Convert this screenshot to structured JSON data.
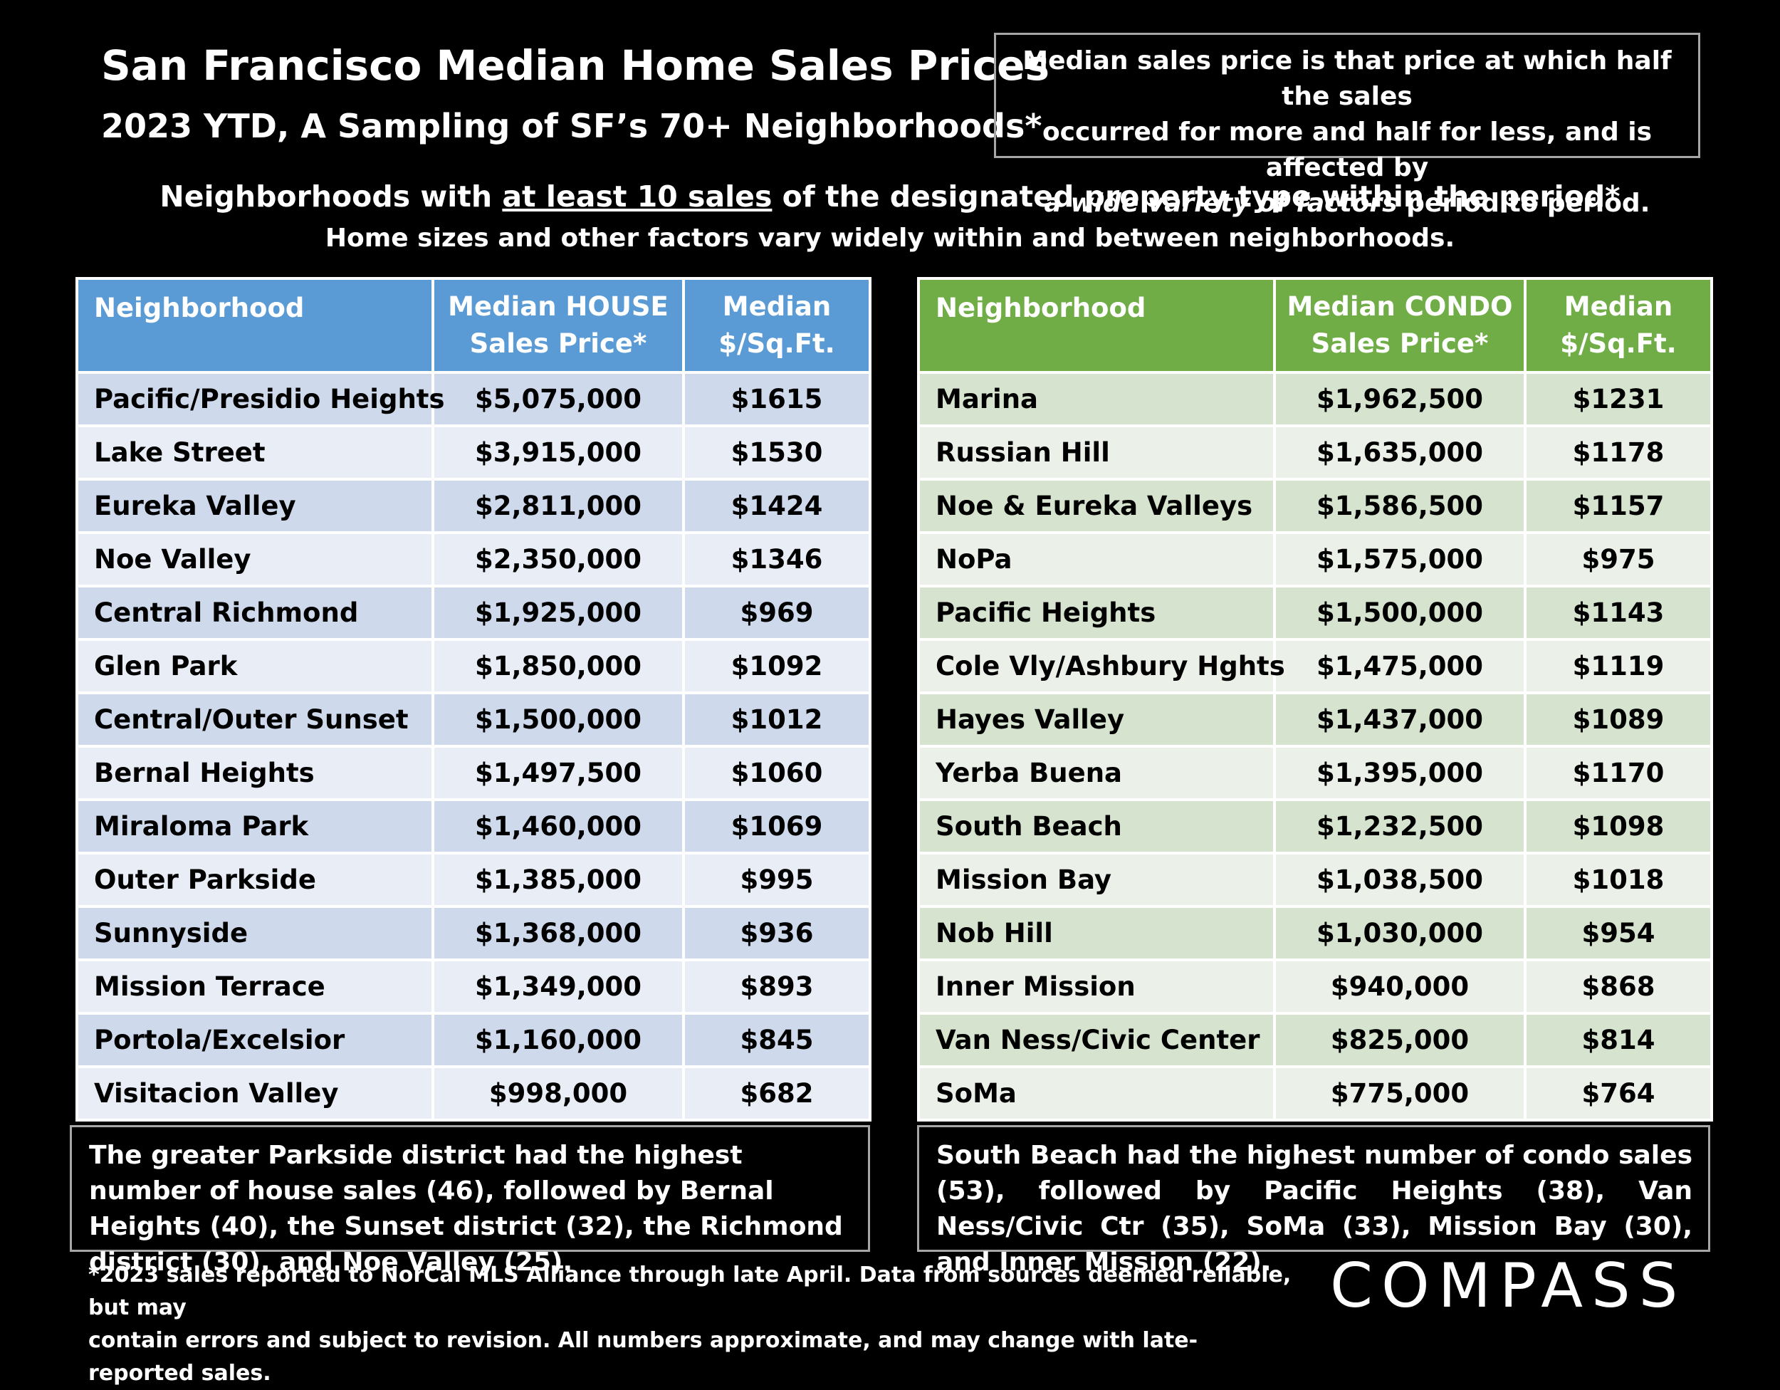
{
  "header": {
    "title": "San Francisco Median Home Sales Prices",
    "subtitle": "2023 YTD, A Sampling of SF’s 70+ Neighborhoods*"
  },
  "note": {
    "line1": "Median sales price is that price at which half the sales",
    "line2": "occurred for more and half for less, and is affected by",
    "line3_italic": "a wide variety of factors",
    "line3_rest": " period to period."
  },
  "headings": {
    "line1_pre": "Neighborhoods with ",
    "line1_underlined": "at least 10 sales",
    "line1_post": " of the designated property type within the period*",
    "line2": "Home sizes and other factors vary widely within and between neighborhoods."
  },
  "house_table": {
    "headers": [
      "Neighborhood",
      "Median HOUSE Sales Price*",
      "Median $/Sq.Ft."
    ],
    "header_lines": [
      [
        "Neighborhood"
      ],
      [
        "Median HOUSE",
        "Sales Price*"
      ],
      [
        "Median",
        "$/Sq.Ft."
      ]
    ],
    "rows": [
      [
        "Pacific/Presidio Heights",
        "$5,075,000",
        "$1615"
      ],
      [
        "Lake Street",
        "$3,915,000",
        "$1530"
      ],
      [
        "Eureka Valley",
        "$2,811,000",
        "$1424"
      ],
      [
        "Noe Valley",
        "$2,350,000",
        "$1346"
      ],
      [
        "Central Richmond",
        "$1,925,000",
        "$969"
      ],
      [
        "Glen Park",
        "$1,850,000",
        "$1092"
      ],
      [
        "Central/Outer Sunset",
        "$1,500,000",
        "$1012"
      ],
      [
        "Bernal Heights",
        "$1,497,500",
        "$1060"
      ],
      [
        "Miraloma Park",
        "$1,460,000",
        "$1069"
      ],
      [
        "Outer Parkside",
        "$1,385,000",
        "$995"
      ],
      [
        "Sunnyside",
        "$1,368,000",
        "$936"
      ],
      [
        "Mission Terrace",
        "$1,349,000",
        "$893"
      ],
      [
        "Portola/Excelsior",
        "$1,160,000",
        "$845"
      ],
      [
        "Visitacion Valley",
        "$998,000",
        "$682"
      ]
    ]
  },
  "condo_table": {
    "headers": [
      "Neighborhood",
      "Median CONDO Sales Price*",
      "Median $/Sq.Ft."
    ],
    "header_lines": [
      [
        "Neighborhood"
      ],
      [
        "Median CONDO",
        "Sales Price*"
      ],
      [
        "Median",
        "$/Sq.Ft."
      ]
    ],
    "rows": [
      [
        "Marina",
        "$1,962,500",
        "$1231"
      ],
      [
        "Russian Hill",
        "$1,635,000",
        "$1178"
      ],
      [
        "Noe & Eureka Valleys",
        "$1,586,500",
        "$1157"
      ],
      [
        "NoPa",
        "$1,575,000",
        "$975"
      ],
      [
        "Pacific Heights",
        "$1,500,000",
        "$1143"
      ],
      [
        "Cole Vly/Ashbury Hghts",
        "$1,475,000",
        "$1119"
      ],
      [
        "Hayes Valley",
        "$1,437,000",
        "$1089"
      ],
      [
        "Yerba Buena",
        "$1,395,000",
        "$1170"
      ],
      [
        "South Beach",
        "$1,232,500",
        "$1098"
      ],
      [
        "Mission Bay",
        "$1,038,500",
        "$1018"
      ],
      [
        "Nob Hill",
        "$1,030,000",
        "$954"
      ],
      [
        "Inner Mission",
        "$940,000",
        "$868"
      ],
      [
        "Van Ness/Civic Center",
        "$825,000",
        "$814"
      ],
      [
        "SoMa",
        "$775,000",
        "$764"
      ]
    ]
  },
  "summaries": {
    "house": "The greater Parkside district had the highest number of house sales (46), followed by Bernal Heights (40), the Sunset district (32), the Richmond district (30), and Noe Valley (25).",
    "condo": "South Beach had the highest number of condo sales (53), followed by Pacific Heights (38), Van Ness/Civic Ctr (35), SoMa (33), Mission Bay (30), and Inner Mission (22)."
  },
  "footnote": {
    "line1": "*2023 sales reported to NorCal MLS Alliance through late April. Data from sources deemed reliable, but may",
    "line2": "contain errors and subject to revision. All numbers approximate, and may change with late-reported sales."
  },
  "logo": {
    "text": "COMPASS"
  },
  "colors": {
    "background": "#000000",
    "house_header": "#5b9bd5",
    "house_row_odd": "#cfd9ec",
    "house_row_even": "#e8edf6",
    "condo_header": "#70ad47",
    "condo_row_odd": "#d6e4cf",
    "condo_row_even": "#ebf1e8"
  }
}
